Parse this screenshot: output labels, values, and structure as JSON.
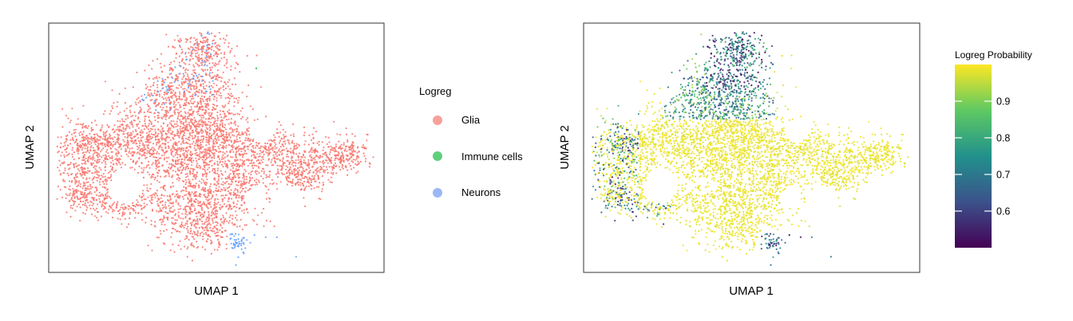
{
  "chart_data": [
    {
      "type": "scatter",
      "xlabel": "UMAP 1",
      "ylabel": "UMAP 2",
      "legend": {
        "title": "Logreg",
        "placement": "right",
        "entries": [
          {
            "name": "Glia",
            "color": "#f8a09a"
          },
          {
            "name": "Immune cells",
            "color": "#5fcf7c"
          },
          {
            "name": "Neurons",
            "color": "#9ab8f5"
          }
        ]
      },
      "grid": false,
      "series": [
        {
          "name": "Glia",
          "color": "#f8766d"
        },
        {
          "name": "Immune cells",
          "color": "#00ba38"
        },
        {
          "name": "Neurons",
          "color": "#619cff"
        }
      ]
    },
    {
      "type": "scatter",
      "xlabel": "UMAP 1",
      "ylabel": "UMAP 2",
      "colorbar": {
        "title": "Logreg Probability",
        "placement": "right",
        "range": [
          0.5,
          1.0
        ],
        "ticks": [
          0.6,
          0.7,
          0.8,
          0.9
        ],
        "tick_labels": [
          "0.6",
          "0.7",
          "0.8",
          "0.9"
        ],
        "colormap": "viridis",
        "colors": [
          "#440154",
          "#3b528b",
          "#21918c",
          "#5ec962",
          "#fde725"
        ]
      },
      "grid": false
    }
  ]
}
